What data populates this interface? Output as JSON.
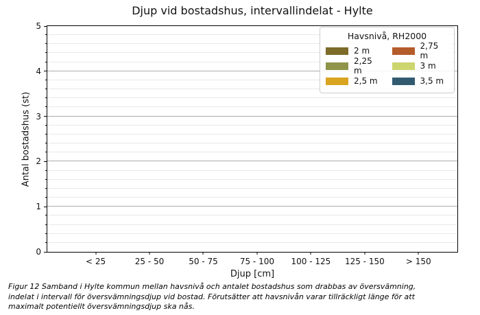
{
  "chart_data": {
    "type": "bar",
    "title": "Djup vid bostadshus, intervallindelat - Hylte",
    "xlabel": "Djup [cm]",
    "ylabel": "Antal bostadshus (st)",
    "categories": [
      "< 25",
      "25 - 50",
      "50 - 75",
      "75 - 100",
      "100 - 125",
      "125 - 150",
      "> 150"
    ],
    "series": [
      {
        "name": "2 m",
        "color": "#7d6c2a",
        "values": [
          0,
          0,
          0,
          0,
          0,
          0,
          0
        ]
      },
      {
        "name": "2,25 m",
        "color": "#8f9449",
        "values": [
          0,
          0,
          0,
          0,
          0,
          0,
          0
        ]
      },
      {
        "name": "2,5 m",
        "color": "#d9a420",
        "values": [
          0,
          0,
          0,
          0,
          0,
          0,
          0
        ]
      },
      {
        "name": "2,75 m",
        "color": "#b55c2b",
        "values": [
          0,
          0,
          0,
          0,
          0,
          0,
          0
        ]
      },
      {
        "name": "3 m",
        "color": "#cdd56e",
        "values": [
          0,
          0,
          0,
          0,
          0,
          0,
          0
        ]
      },
      {
        "name": "3,5 m",
        "color": "#315a70",
        "values": [
          0,
          0,
          0,
          0,
          0,
          0,
          0
        ]
      }
    ],
    "ylim": [
      0,
      5
    ],
    "yticks": [
      0,
      1,
      2,
      3,
      4,
      5
    ],
    "y_minor_step": 0.2,
    "grid": "horizontal-major-and-minor",
    "legend": {
      "title": "Havsnivå, RH2000",
      "position": "upper right",
      "columns": 2
    }
  },
  "caption": {
    "lines": [
      "Figur 12 Samband i Hylte kommun mellan havsnivå och antalet bostadshus som drabbas av översvämning,",
      "indelat i intervall för översvämningsdjup vid bostad. Förutsätter att havsnivån varar tillräckligt länge för att",
      "maximalt potentiellt översvämningsdjup ska nås."
    ]
  }
}
